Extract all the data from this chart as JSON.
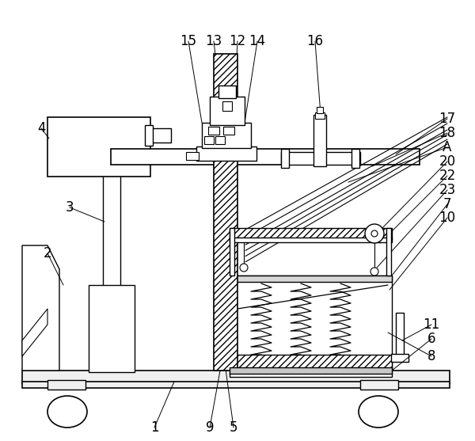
{
  "bg_color": "#ffffff",
  "line_color": "#000000",
  "figsize": [
    6.0,
    5.57
  ],
  "dpi": 100
}
